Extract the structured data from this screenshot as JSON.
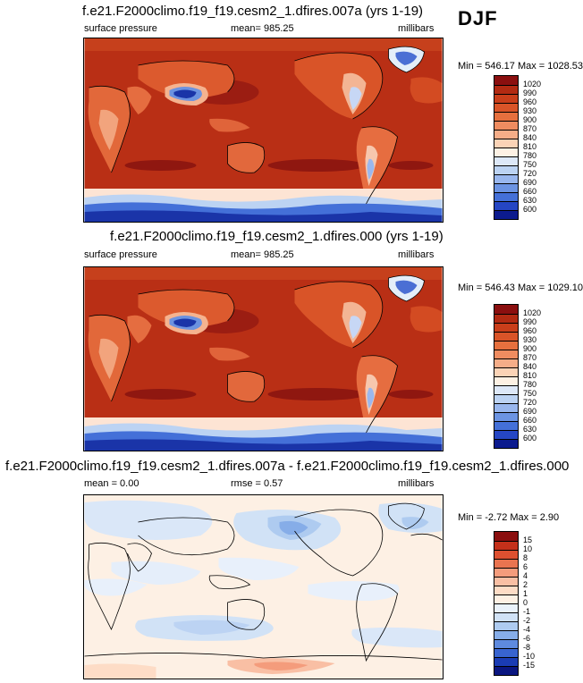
{
  "season": "DJF",
  "panels": [
    {
      "title": "f.e21.F2000climo.f19_f19.cesm2_1.dfires.007a (yrs 1-19)",
      "left_label": "surface pressure",
      "center_label": "mean= 985.25",
      "right_label": "millibars",
      "minmax": "Min = 546.17 Max = 1028.53",
      "colorbar": {
        "labels": [
          "1020",
          "990",
          "960",
          "930",
          "900",
          "870",
          "840",
          "810",
          "780",
          "750",
          "720",
          "690",
          "660",
          "630",
          "600"
        ],
        "colors": [
          "#8b0f0f",
          "#b22a12",
          "#c93e1a",
          "#d95428",
          "#e6703e",
          "#ef8c60",
          "#f5ad88",
          "#fbd3b6",
          "#fdf1e4",
          "#dde8f8",
          "#bcd3f3",
          "#99b7ee",
          "#6c94e3",
          "#4470d8",
          "#2546c4",
          "#0c1b8e"
        ]
      },
      "stats": {
        "mean": 985.25,
        "min": 546.17,
        "max": 1028.53
      }
    },
    {
      "title": "f.e21.F2000climo.f19_f19.cesm2_1.dfires.000 (yrs 1-19)",
      "left_label": "surface pressure",
      "center_label": "mean= 985.25",
      "right_label": "millibars",
      "minmax": "Min = 546.43 Max = 1029.10",
      "colorbar": {
        "labels": [
          "1020",
          "990",
          "960",
          "930",
          "900",
          "870",
          "840",
          "810",
          "780",
          "750",
          "720",
          "690",
          "660",
          "630",
          "600"
        ],
        "colors": [
          "#8b0f0f",
          "#b22a12",
          "#c93e1a",
          "#d95428",
          "#e6703e",
          "#ef8c60",
          "#f5ad88",
          "#fbd3b6",
          "#fdf1e4",
          "#dde8f8",
          "#bcd3f3",
          "#99b7ee",
          "#6c94e3",
          "#4470d8",
          "#2546c4",
          "#0c1b8e"
        ]
      },
      "stats": {
        "mean": 985.25,
        "min": 546.43,
        "max": 1029.1
      }
    },
    {
      "title": "f.e21.F2000climo.f19_f19.cesm2_1.dfires.007a - f.e21.F2000climo.f19_f19.cesm2_1.dfires.000",
      "left_label": "mean =   0.00",
      "center_label": "rmse =   0.57",
      "right_label": "millibars",
      "minmax": "Min =  -2.72 Max =   2.90",
      "colorbar": {
        "labels": [
          "15",
          "10",
          "8",
          "6",
          "4",
          "2",
          "1",
          "0",
          "-1",
          "-2",
          "-4",
          "-6",
          "-8",
          "-10",
          "-15"
        ],
        "colors": [
          "#8b0f0f",
          "#c4301a",
          "#dd5030",
          "#ea7450",
          "#f49c7c",
          "#f9bfa4",
          "#fddcc6",
          "#fdf0e4",
          "#eaf2fb",
          "#d1e2f6",
          "#aecbf0",
          "#86ade8",
          "#5e8ade",
          "#3864d0",
          "#1a3cb4",
          "#0a1680"
        ]
      },
      "stats": {
        "mean": 0.0,
        "rmse": 0.57,
        "min": -2.72,
        "max": 2.9
      }
    }
  ]
}
